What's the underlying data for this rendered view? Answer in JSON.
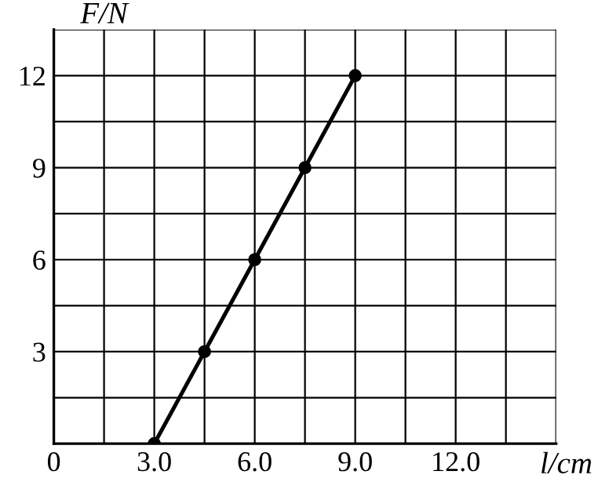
{
  "chart_data": {
    "type": "line",
    "xlabel": "l/cm",
    "ylabel": "F/N",
    "x": [
      3.0,
      4.5,
      6.0,
      7.5,
      9.0
    ],
    "series": [
      {
        "color": "#000000",
        "values": [
          0,
          3,
          6,
          9,
          12
        ]
      }
    ],
    "xlim": [
      0,
      15
    ],
    "ylim": [
      0,
      13.5
    ],
    "xticks": [
      0,
      {
        "value": 1.5,
        "label": null
      },
      {
        "value": 3,
        "label": "3.0"
      },
      {
        "value": 4.5,
        "label": null
      },
      {
        "value": 6,
        "label": "6.0"
      },
      {
        "value": 7.5,
        "label": null
      },
      {
        "value": 9,
        "label": "9.0"
      },
      {
        "value": 10.5,
        "label": null
      },
      {
        "value": 12,
        "label": "12.0"
      },
      {
        "value": 13.5,
        "label": null
      },
      {
        "value": 15,
        "label": null
      }
    ],
    "yticks": [
      {
        "value": 1.5,
        "label": null
      },
      3,
      {
        "value": 4.5,
        "label": null
      },
      6,
      {
        "value": 7.5,
        "label": null
      },
      9,
      {
        "value": 10.5,
        "label": null
      },
      12,
      {
        "value": 13.5,
        "label": null
      }
    ],
    "grid": true,
    "marker": "circle",
    "line_style": "solid"
  }
}
